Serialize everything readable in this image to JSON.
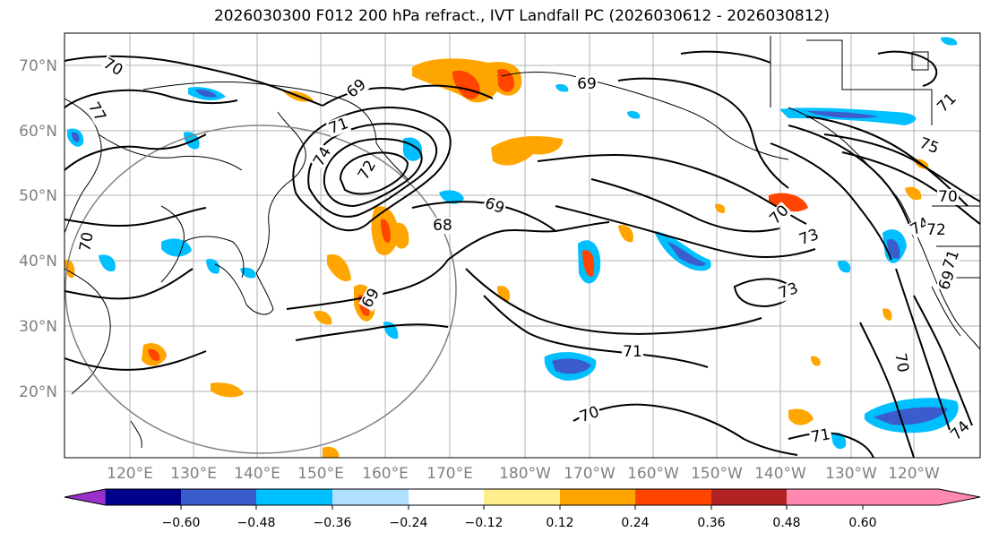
{
  "title": "2026030300 F012 200 hPa refract., IVT Landfall PC (2026030612 - 2026030812)",
  "latitude_labels": [
    "70°N",
    "60°N",
    "50°N",
    "40°N",
    "30°N",
    "20°N"
  ],
  "longitude_labels": [
    "120°E",
    "130°E",
    "140°E",
    "150°E",
    "160°E",
    "170°E",
    "180°W",
    "170°W",
    "160°W",
    "150°W",
    "140°W",
    "130°W",
    "120°W"
  ],
  "contour_labels": [
    "70",
    "69",
    "69",
    "71",
    "74",
    "72",
    "77",
    "71",
    "73",
    "68",
    "69",
    "70",
    "73",
    "75",
    "74",
    "70",
    "71",
    "69",
    "71",
    "70",
    "71",
    "70",
    "69",
    "70",
    "74",
    "72"
  ],
  "colorbar": {
    "tick_labels": [
      "−0.60",
      "−0.48",
      "−0.36",
      "−0.24",
      "−0.12",
      "0.12",
      "0.24",
      "0.36",
      "0.48",
      "0.60"
    ],
    "colors": [
      "#9932cc",
      "#00008b",
      "#3a5ccc",
      "#00bfff",
      "#b0e0ff",
      "#ffffff",
      "#ffec8b",
      "#ffa500",
      "#ff4500",
      "#b22222",
      "#ff88b0"
    ]
  },
  "colors": {
    "frame": "#000000",
    "grid": "#a0a0a0",
    "coast": "#000000",
    "circle": "#808080"
  }
}
